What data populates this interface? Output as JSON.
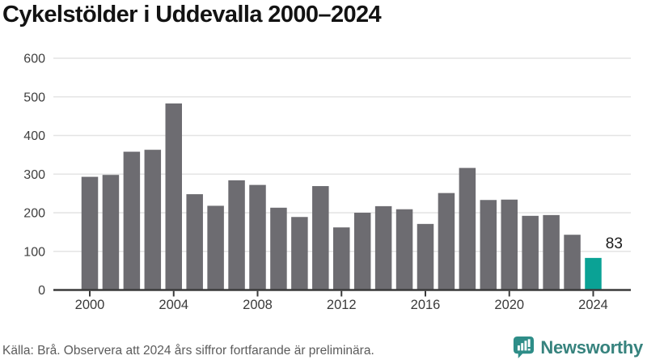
{
  "title": "Cykelstölder i Uddevalla 2000–2024",
  "chart_data": {
    "type": "bar",
    "title": "Cykelstölder i Uddevalla 2000–2024",
    "categories": [
      2000,
      2001,
      2002,
      2003,
      2004,
      2005,
      2006,
      2007,
      2008,
      2009,
      2010,
      2011,
      2012,
      2013,
      2014,
      2015,
      2016,
      2017,
      2018,
      2019,
      2020,
      2021,
      2022,
      2023,
      2024
    ],
    "values": [
      293,
      298,
      358,
      363,
      483,
      248,
      218,
      284,
      272,
      213,
      189,
      269,
      162,
      200,
      217,
      209,
      171,
      251,
      316,
      233,
      234,
      192,
      194,
      143,
      83
    ],
    "xlabel": "",
    "ylabel": "",
    "ylim": [
      0,
      600
    ],
    "y_ticks": [
      0,
      100,
      200,
      300,
      400,
      500,
      600
    ],
    "x_tick_labels": [
      "2000",
      "2004",
      "2008",
      "2012",
      "2016",
      "2020",
      "2024"
    ],
    "grid": "horizontal",
    "legend": "none",
    "bar_color": "#6d6c71",
    "highlight_color": "#0aa295",
    "highlight_category": 2024,
    "annotation": {
      "category": 2024,
      "text": "83"
    },
    "gridline_color": "#e4e4e4",
    "axis_color": "#3a3a3a"
  },
  "footer": {
    "source": "Källa: Brå. Observera att 2024 års siffror fortfarande är preliminära."
  },
  "logo": {
    "text": "Newsworthy",
    "icon": "newsworthy-speech-bubble-bar-chart-icon",
    "icon_color": "#2e8d88",
    "text_color": "#37837e"
  }
}
